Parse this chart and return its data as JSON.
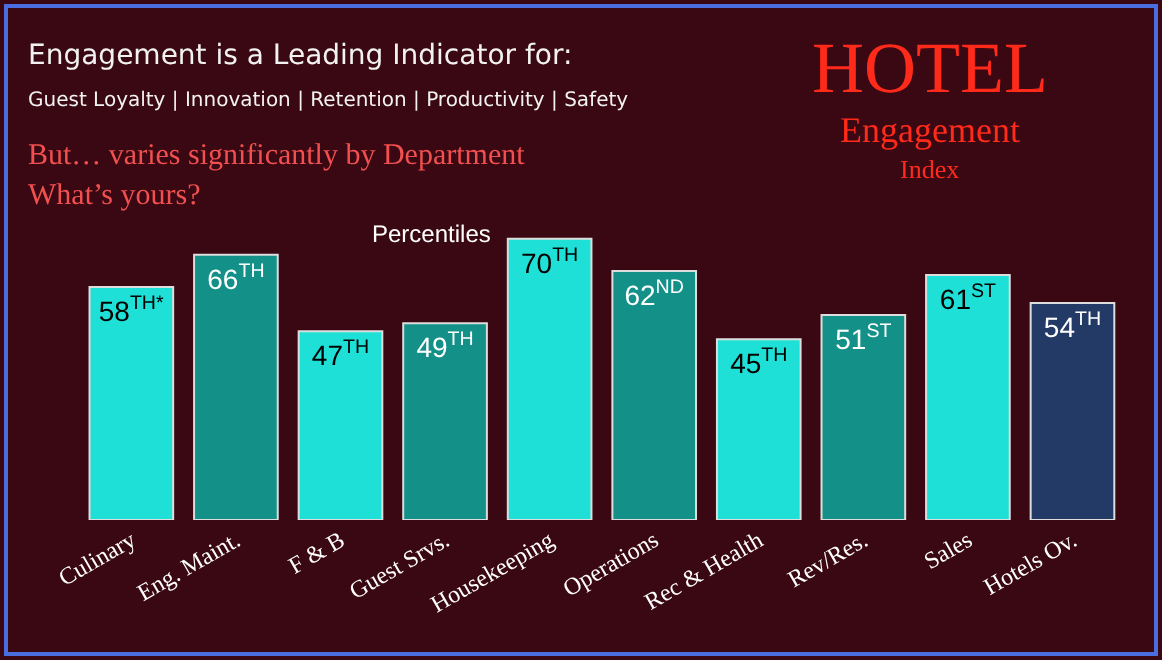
{
  "chart_data": {
    "type": "bar",
    "title": "Engagement is a Leading Indicator for:",
    "subtitle": "Guest Loyalty | Innovation | Retention | Productivity | Safety",
    "annotations": [
      "But… varies significantly by Department",
      "What’s yours?",
      "HOTEL",
      "Engagement",
      "Index",
      "Percentiles"
    ],
    "categories": [
      "Culinary",
      "Eng. Maint.",
      "F & B",
      "Guest Srvs.",
      "Housekeeping",
      "Operations",
      "Rec & Health",
      "Rev/Res.",
      "Sales",
      "Hotels Ov."
    ],
    "values": [
      58,
      66,
      47,
      49,
      70,
      62,
      45,
      51,
      61,
      54
    ],
    "value_labels": [
      "58$^{TH*}$",
      "66$^{TH}$",
      "47$^{TH}$",
      "49$^{TH}$",
      "70$^{TH}$",
      "62$^{ND}$",
      "45$^{TH}$",
      "51$^{ST}$",
      "61$^{ST}$",
      "54$^{TH}$"
    ],
    "colors": [
      "#1fe0d6",
      "#139088",
      "#1fe0d6",
      "#139088",
      "#1fe0d6",
      "#139088",
      "#1fe0d6",
      "#139088",
      "#1fe0d6",
      "#233a66"
    ],
    "tick_labels": "x",
    "grid": false,
    "legend": false
  }
}
